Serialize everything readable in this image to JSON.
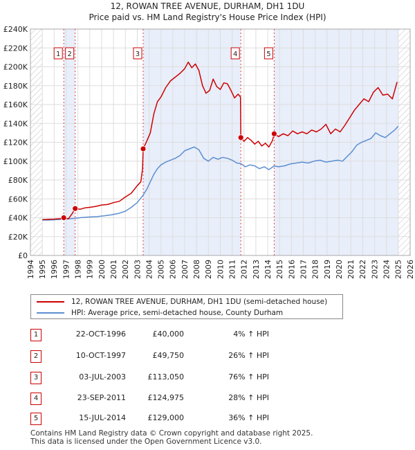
{
  "chart_data": {
    "type": "line",
    "title": "12, ROWAN TREE AVENUE, DURHAM, DH1 1DU",
    "subtitle": "Price paid vs. HM Land Registry's House Price Index (HPI)",
    "xlim": [
      1994,
      2026
    ],
    "ylim": [
      0,
      240000
    ],
    "x_ticks": [
      1994,
      1995,
      1996,
      1997,
      1998,
      1999,
      2000,
      2001,
      2002,
      2003,
      2004,
      2005,
      2006,
      2007,
      2008,
      2009,
      2010,
      2011,
      2012,
      2013,
      2014,
      2015,
      2016,
      2017,
      2018,
      2019,
      2020,
      2021,
      2022,
      2023,
      2024,
      2025,
      2026
    ],
    "y_ticks": [
      {
        "value": 0,
        "label": "£0"
      },
      {
        "value": 20000,
        "label": "£20K"
      },
      {
        "value": 40000,
        "label": "£40K"
      },
      {
        "value": 60000,
        "label": "£60K"
      },
      {
        "value": 80000,
        "label": "£80K"
      },
      {
        "value": 100000,
        "label": "£100K"
      },
      {
        "value": 120000,
        "label": "£120K"
      },
      {
        "value": 140000,
        "label": "£140K"
      },
      {
        "value": 160000,
        "label": "£160K"
      },
      {
        "value": 180000,
        "label": "£180K"
      },
      {
        "value": 200000,
        "label": "£200K"
      },
      {
        "value": 220000,
        "label": "£220K"
      },
      {
        "value": 240000,
        "label": "£240K"
      }
    ],
    "shaded_ranges": [
      [
        1996.81,
        1997.77
      ],
      [
        2003.5,
        2011.73
      ],
      [
        2014.54,
        2025.0
      ]
    ],
    "hatched_ranges": [
      [
        1994.0,
        1995.0
      ],
      [
        2025.0,
        2026.0
      ]
    ],
    "series": [
      {
        "name": "12, ROWAN TREE AVENUE, DURHAM, DH1 1DU (semi-detached house)",
        "color": "#cc0000",
        "x": [
          1995.0,
          1995.5,
          1996.0,
          1996.5,
          1996.81,
          1997.2,
          1997.5,
          1997.77,
          1998.2,
          1998.6,
          1999.0,
          1999.5,
          2000.0,
          2000.5,
          2001.0,
          2001.5,
          2002.0,
          2002.5,
          2003.0,
          2003.3,
          2003.45,
          2003.5,
          2003.8,
          2004.1,
          2004.4,
          2004.7,
          2005.0,
          2005.4,
          2005.8,
          2006.2,
          2006.6,
          2007.0,
          2007.3,
          2007.6,
          2007.9,
          2008.2,
          2008.5,
          2008.8,
          2009.1,
          2009.4,
          2009.7,
          2010.0,
          2010.3,
          2010.6,
          2010.9,
          2011.2,
          2011.5,
          2011.7,
          2011.73,
          2012.0,
          2012.3,
          2012.6,
          2012.9,
          2013.2,
          2013.5,
          2013.8,
          2014.1,
          2014.4,
          2014.54,
          2014.9,
          2015.3,
          2015.7,
          2016.1,
          2016.5,
          2016.9,
          2017.3,
          2017.7,
          2018.1,
          2018.5,
          2018.9,
          2019.3,
          2019.7,
          2020.1,
          2020.5,
          2020.9,
          2021.3,
          2021.7,
          2022.1,
          2022.5,
          2022.9,
          2023.3,
          2023.7,
          2024.1,
          2024.5,
          2024.9
        ],
        "values": [
          38000,
          38300,
          38500,
          39000,
          40000,
          38800,
          44000,
          49750,
          49000,
          50500,
          51000,
          52000,
          53500,
          54000,
          56000,
          57500,
          62000,
          66000,
          74000,
          78000,
          92000,
          113050,
          121000,
          130000,
          150000,
          163000,
          168000,
          178000,
          185000,
          189000,
          193000,
          198000,
          205000,
          199000,
          203000,
          196000,
          180000,
          172000,
          175000,
          187000,
          179000,
          176000,
          183000,
          182000,
          175000,
          167000,
          171000,
          168000,
          124975,
          121000,
          125000,
          122000,
          118000,
          121000,
          116000,
          119000,
          115000,
          122000,
          129000,
          126000,
          129000,
          127000,
          132000,
          129000,
          131000,
          129000,
          133000,
          131000,
          134000,
          139000,
          129000,
          134000,
          131000,
          138000,
          146000,
          154000,
          160000,
          166000,
          163000,
          173000,
          178000,
          170000,
          171000,
          166000,
          184000
        ]
      },
      {
        "name": "HPI: Average price, semi-detached house, County Durham",
        "color": "#5b8ed1",
        "x": [
          1995.0,
          1995.5,
          1996.0,
          1996.5,
          1996.81,
          1997.2,
          1997.77,
          1998.3,
          1999.0,
          1999.6,
          2000.2,
          2000.8,
          2001.4,
          2002.0,
          2002.5,
          2003.0,
          2003.5,
          2003.8,
          2004.1,
          2004.4,
          2004.7,
          2005.0,
          2005.4,
          2005.8,
          2006.2,
          2006.6,
          2007.0,
          2007.4,
          2007.8,
          2008.2,
          2008.6,
          2009.0,
          2009.4,
          2009.8,
          2010.2,
          2010.6,
          2011.0,
          2011.4,
          2011.73,
          2012.1,
          2012.5,
          2012.9,
          2013.3,
          2013.7,
          2014.1,
          2014.54,
          2014.9,
          2015.4,
          2015.9,
          2016.4,
          2016.9,
          2017.4,
          2017.9,
          2018.4,
          2018.9,
          2019.4,
          2019.9,
          2020.3,
          2020.7,
          2021.1,
          2021.5,
          2021.9,
          2022.3,
          2022.7,
          2023.1,
          2023.5,
          2023.9,
          2024.3,
          2024.7,
          2025.0
        ],
        "values": [
          37500,
          37500,
          37800,
          38200,
          38500,
          38800,
          39500,
          40200,
          40800,
          41200,
          42000,
          43000,
          44500,
          47000,
          51000,
          56000,
          64000,
          70000,
          78000,
          86000,
          92000,
          96000,
          99000,
          101000,
          103000,
          106000,
          111000,
          113000,
          115000,
          112000,
          103000,
          100000,
          104000,
          102000,
          104000,
          103000,
          101000,
          98000,
          97500,
          94000,
          96000,
          95000,
          92000,
          94000,
          91000,
          95000,
          94000,
          95000,
          97000,
          98000,
          99000,
          98000,
          100000,
          101000,
          99000,
          100000,
          101000,
          100000,
          105000,
          110000,
          117000,
          120000,
          122000,
          124000,
          130000,
          127000,
          125000,
          129000,
          133000,
          137000
        ]
      }
    ],
    "sales": [
      {
        "n": "1",
        "x": 1996.81,
        "value": 40000
      },
      {
        "n": "2",
        "x": 1997.77,
        "value": 49750
      },
      {
        "n": "3",
        "x": 2003.5,
        "value": 113050
      },
      {
        "n": "4",
        "x": 2011.73,
        "value": 124975
      },
      {
        "n": "5",
        "x": 2014.54,
        "value": 129000
      }
    ]
  },
  "legend": {
    "property_label": "12, ROWAN TREE AVENUE, DURHAM, DH1 1DU (semi-detached house)",
    "hpi_label": "HPI: Average price, semi-detached house, County Durham",
    "property_color": "#cc0000",
    "hpi_color": "#5b8ed1"
  },
  "transactions": [
    {
      "n": "1",
      "date": "22-OCT-1996",
      "price": "£40,000",
      "hpi": "4% ↑ HPI"
    },
    {
      "n": "2",
      "date": "10-OCT-1997",
      "price": "£49,750",
      "hpi": "26% ↑ HPI"
    },
    {
      "n": "3",
      "date": "03-JUL-2003",
      "price": "£113,050",
      "hpi": "76% ↑ HPI"
    },
    {
      "n": "4",
      "date": "23-SEP-2011",
      "price": "£124,975",
      "hpi": "28% ↑ HPI"
    },
    {
      "n": "5",
      "date": "15-JUL-2014",
      "price": "£129,000",
      "hpi": "36% ↑ HPI"
    }
  ],
  "footer": {
    "line1": "Contains HM Land Registry data © Crown copyright and database right 2025.",
    "line2": "This data is licensed under the Open Government Licence v3.0."
  }
}
